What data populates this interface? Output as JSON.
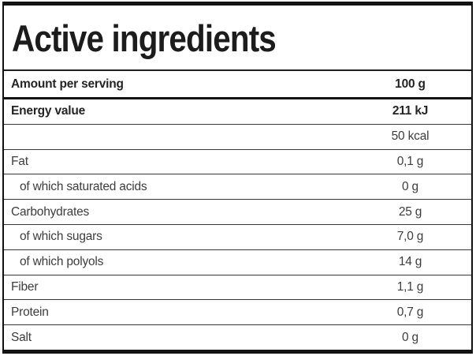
{
  "label": {
    "title": "Active ingredients",
    "header": {
      "label": "Amount per serving",
      "value": "100 g"
    },
    "rows": [
      {
        "label": "Energy value",
        "value": "211 kJ"
      },
      {
        "label": "",
        "value": "50 kcal"
      },
      {
        "label": "Fat",
        "value": "0,1 g"
      },
      {
        "label": "of which saturated acids",
        "value": "0 g"
      },
      {
        "label": "Carbohydrates",
        "value": "25 g"
      },
      {
        "label": "of which sugars",
        "value": "7,0 g"
      },
      {
        "label": "of which polyols",
        "value": "14 g"
      },
      {
        "label": "Fiber",
        "value": "1,1 g"
      },
      {
        "label": "Protein",
        "value": "0,7 g"
      },
      {
        "label": "Salt",
        "value": "0 g"
      }
    ]
  },
  "colors": {
    "outer_border": "#121212",
    "title_text": "#1c1c1c",
    "row_text": "#3d3d3d",
    "divider": "#383838",
    "background": "#ffffff"
  }
}
